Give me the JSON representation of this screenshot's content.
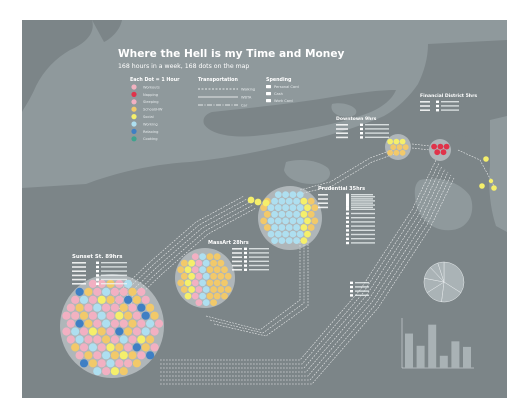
{
  "poster": {
    "title": "Where the Hell is my Time and Money",
    "subtitle": "168 hours in a week, 168 dots on the map",
    "background_color": "#8f999c",
    "land_color": "#7c8588"
  },
  "legend": {
    "dot_heading": "Each Dot = 1 Hour",
    "dot_items": [
      {
        "label": "Workouts",
        "color": "#f2b2c0"
      },
      {
        "label": "Napping",
        "color": "#e0334a"
      },
      {
        "label": "Sleeping",
        "color": "#f2b0c2"
      },
      {
        "label": "School/HW",
        "color": "#f2c96a"
      },
      {
        "label": "Social",
        "color": "#f5ef6b"
      },
      {
        "label": "Working",
        "color": "#aedff0"
      },
      {
        "label": "Relaxing",
        "color": "#3f7fc4"
      },
      {
        "label": "Cooking",
        "color": "#3fa38e"
      }
    ],
    "transport_heading": "Transportation",
    "transport_items": [
      "Walking",
      "WBTA",
      "Car"
    ],
    "spending_heading": "Spending",
    "spending_items": [
      "Personal Card",
      "Cash",
      "Work Card"
    ]
  },
  "locations": [
    {
      "name": "Sunset St. 89hrs"
    },
    {
      "name": "MassArt 28hrs"
    },
    {
      "name": "Prudential 35hrs"
    },
    {
      "name": "Downtown 9hrs"
    },
    {
      "name": "Financial District 5hrs"
    }
  ],
  "chart_data": [
    {
      "type": "pie",
      "values": [
        34,
        18,
        14,
        12,
        10,
        7,
        5
      ]
    },
    {
      "type": "bar",
      "categories": [
        "",
        "",
        "",
        "",
        "",
        ""
      ],
      "values": [
        62,
        40,
        78,
        22,
        48,
        38
      ],
      "ylim": [
        0,
        90
      ]
    }
  ]
}
